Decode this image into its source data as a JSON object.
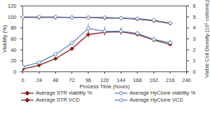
{
  "chart_data": {
    "type": "line",
    "xlabel": "Process Time (hours)",
    "ylabel": "Viability (%)",
    "y2label": "Viable Cell Density (10⁶ cells/mL)",
    "x": [
      0,
      24,
      48,
      72,
      96,
      120,
      144,
      168,
      192,
      216
    ],
    "xlim": [
      0,
      240
    ],
    "xticks": [
      0,
      24,
      48,
      72,
      96,
      120,
      144,
      168,
      192,
      216,
      240
    ],
    "ylim": [
      0,
      120
    ],
    "yticks": [
      0,
      20,
      40,
      60,
      80,
      100,
      120
    ],
    "y2lim": [
      0,
      6
    ],
    "y2ticks": [
      0,
      1,
      2,
      3,
      4,
      5,
      6
    ],
    "grid": false,
    "legend": "bottom",
    "series": [
      {
        "name": "Average STR viability %",
        "color": "#8b1a1a",
        "marker": "diamond",
        "values": [
          99,
          99,
          99,
          99,
          99,
          98,
          98,
          96,
          93,
          88
        ]
      },
      {
        "name": "Average HyClone viability %",
        "color": "#5b84b8",
        "marker": "circle-open",
        "values": [
          100,
          100,
          100,
          99,
          99,
          99,
          98,
          97,
          94,
          89
        ]
      },
      {
        "name": "Average STR VCD",
        "color": "#8b1a1a",
        "marker": "diamond",
        "axis": "y2",
        "values": [
          0.25,
          0.6,
          1.2,
          2.1,
          3.4,
          3.6,
          3.65,
          3.4,
          2.9,
          2.5
        ],
        "errors": [
          null,
          null,
          null,
          null,
          0.3,
          0.35,
          0.3,
          0.2,
          0.2,
          0.15
        ]
      },
      {
        "name": "Average HyClone VCD",
        "color": "#5b84b8",
        "marker": "circle-open",
        "axis": "y2",
        "values": [
          0.45,
          0.85,
          1.6,
          2.6,
          3.95,
          3.7,
          3.7,
          3.5,
          2.95,
          2.65
        ],
        "errors": [
          null,
          null,
          null,
          null,
          0.45,
          0.4,
          0.35,
          0.2,
          0.2,
          0.25
        ]
      }
    ]
  }
}
